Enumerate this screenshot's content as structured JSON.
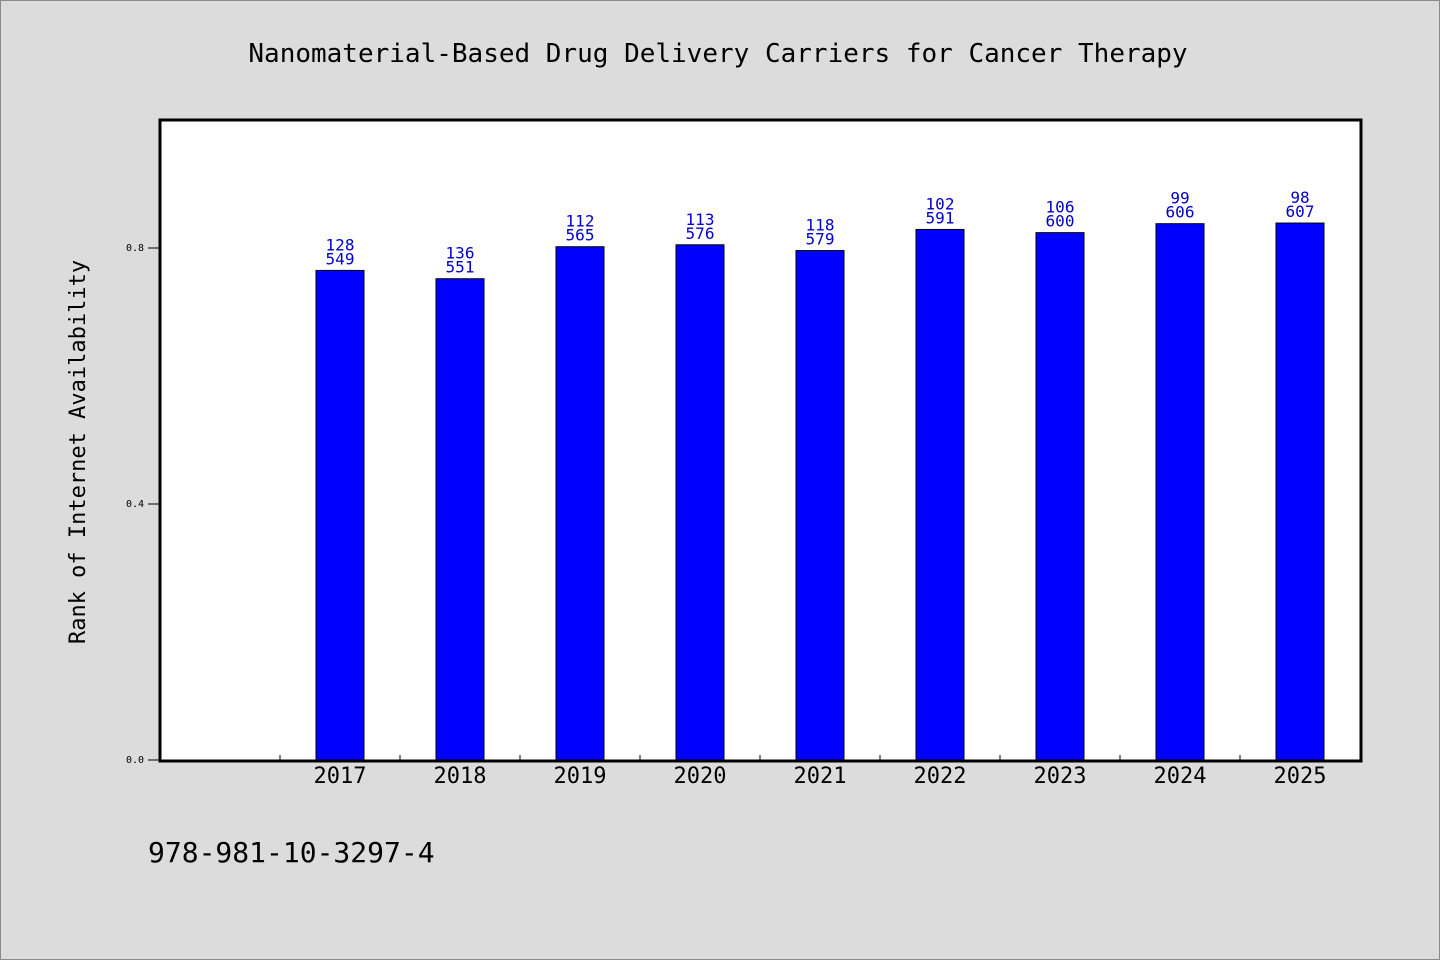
{
  "chart_data": {
    "type": "bar",
    "title": "Nanomaterial-Based Drug Delivery Carriers for Cancer Therapy",
    "ylabel": "Rank of Internet Availability",
    "xlabel": "",
    "categories": [
      "2017",
      "2018",
      "2019",
      "2020",
      "2021",
      "2022",
      "2023",
      "2024",
      "2025"
    ],
    "values": [
      0.765,
      0.752,
      0.802,
      0.805,
      0.796,
      0.829,
      0.824,
      0.838,
      0.839
    ],
    "labels_top": [
      "128",
      "136",
      "112",
      "113",
      "118",
      "102",
      "106",
      "99",
      "98"
    ],
    "labels_bottom": [
      "549",
      "551",
      "565",
      "576",
      "579",
      "591",
      "600",
      "606",
      "607"
    ],
    "ylim": [
      0.0,
      1.0
    ],
    "yticks": [
      0.0,
      0.4,
      0.8
    ],
    "ytick_labels": [
      "0.0",
      "0.4",
      "0.8"
    ],
    "bar_color": "#0000ff",
    "label_color": "#0000cc",
    "grid": false,
    "legend": "none"
  },
  "footer": {
    "isbn": "978-981-10-3297-4"
  },
  "colors": {
    "background": "#dcdcdc",
    "plot_area": "#ffffff",
    "bar": "#0000ff"
  }
}
